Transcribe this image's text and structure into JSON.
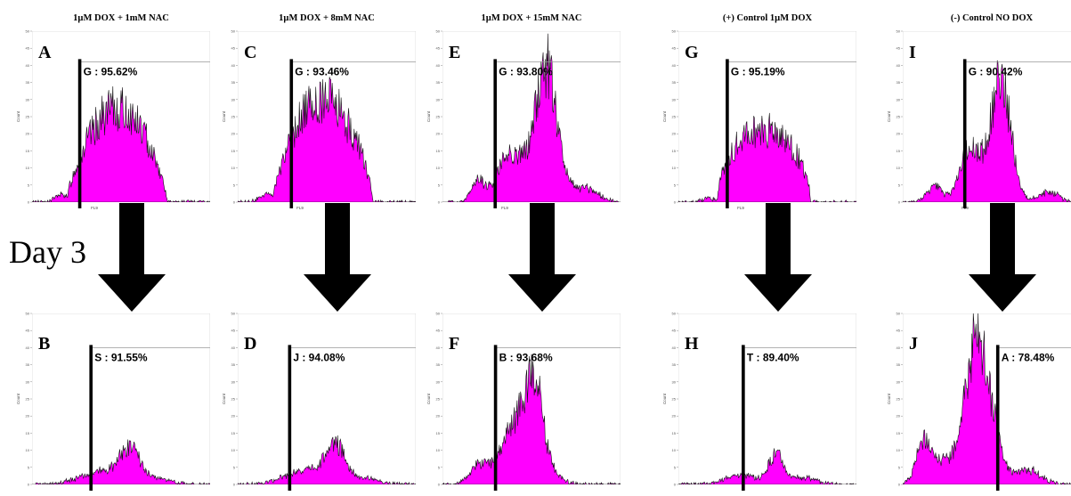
{
  "figure": {
    "row_label": "Day 3",
    "colors": {
      "fill": "#ff00ff",
      "outline": "#111111",
      "arrow": "#000000",
      "gate": "#000000"
    }
  },
  "chart_data": [
    {
      "type": "area",
      "title": "1µM DOX + 1mM NAC",
      "panel_label": "A",
      "gate_label": "G : 95.62%",
      "gate_percent": 95.62,
      "xlabel": "FL9",
      "ylabel": "Count",
      "ylim": [
        0,
        50
      ],
      "y_ticks": [
        0,
        5,
        10,
        15,
        20,
        25,
        30,
        35,
        40,
        45,
        50
      ],
      "peak_count": 27,
      "distribution": "broad"
    },
    {
      "type": "area",
      "title": "",
      "panel_label": "B",
      "gate_label": "S : 91.55%",
      "gate_percent": 91.55,
      "xlabel": "",
      "ylabel": "Count",
      "ylim": [
        0,
        50
      ],
      "y_ticks": [
        0,
        5,
        10,
        15,
        20,
        25,
        30,
        35,
        40,
        45,
        50
      ],
      "peak_count": 11,
      "distribution": "low"
    },
    {
      "type": "area",
      "title": "1µM DOX + 8mM NAC",
      "panel_label": "C",
      "gate_label": "G : 93.46%",
      "gate_percent": 93.46,
      "xlabel": "FL9",
      "ylabel": "Count",
      "ylim": [
        0,
        50
      ],
      "y_ticks": [
        0,
        5,
        10,
        15,
        20,
        25,
        30,
        35,
        40,
        45,
        50
      ],
      "peak_count": 30,
      "distribution": "broad"
    },
    {
      "type": "area",
      "title": "",
      "panel_label": "D",
      "gate_label": "J : 94.08%",
      "gate_percent": 94.08,
      "xlabel": "",
      "ylabel": "Count",
      "ylim": [
        0,
        50
      ],
      "y_ticks": [
        0,
        5,
        10,
        15,
        20,
        25,
        30,
        35,
        40,
        45,
        50
      ],
      "peak_count": 12,
      "distribution": "low"
    },
    {
      "type": "area",
      "title": "1µM DOX + 15mM NAC",
      "panel_label": "E",
      "gate_label": "G : 93.80%",
      "gate_percent": 93.8,
      "xlabel": "FL9",
      "ylabel": "Count",
      "ylim": [
        0,
        50
      ],
      "y_ticks": [
        0,
        5,
        10,
        15,
        20,
        25,
        30,
        35,
        40,
        45,
        50
      ],
      "peak_count": 40,
      "distribution": "sharp"
    },
    {
      "type": "area",
      "title": "",
      "panel_label": "F",
      "gate_label": "B : 93.68%",
      "gate_percent": 93.68,
      "xlabel": "",
      "ylabel": "Count",
      "ylim": [
        0,
        50
      ],
      "y_ticks": [
        0,
        5,
        10,
        15,
        20,
        25,
        30,
        35,
        40,
        45,
        50
      ],
      "peak_count": 33,
      "distribution": "medium"
    },
    {
      "type": "area",
      "title": "(+) Control 1µM DOX",
      "panel_label": "G",
      "gate_label": "G : 95.19%",
      "gate_percent": 95.19,
      "xlabel": "FL9",
      "ylabel": "Count",
      "ylim": [
        0,
        50
      ],
      "y_ticks": [
        0,
        5,
        10,
        15,
        20,
        25,
        30,
        35,
        40,
        45,
        50
      ],
      "peak_count": 21,
      "distribution": "plateau"
    },
    {
      "type": "area",
      "title": "",
      "panel_label": "H",
      "gate_label": "T : 89.40%",
      "gate_percent": 89.4,
      "xlabel": "",
      "ylabel": "Count",
      "ylim": [
        0,
        50
      ],
      "y_ticks": [
        0,
        5,
        10,
        15,
        20,
        25,
        30,
        35,
        40,
        45,
        50
      ],
      "peak_count": 9,
      "distribution": "very-low"
    },
    {
      "type": "area",
      "title": "(-) Control NO DOX",
      "panel_label": "I",
      "gate_label": "G : 90.42%",
      "gate_percent": 90.42,
      "xlabel": "FL9",
      "ylabel": "Count",
      "ylim": [
        0,
        50
      ],
      "y_ticks": [
        0,
        5,
        10,
        15,
        20,
        25,
        30,
        35,
        40,
        45,
        50
      ],
      "peak_count": 36,
      "distribution": "sharp-shoulder"
    },
    {
      "type": "area",
      "title": "",
      "panel_label": "J",
      "gate_label": "A : 78.48%",
      "gate_percent": 78.48,
      "xlabel": "",
      "ylabel": "Count",
      "ylim": [
        0,
        50
      ],
      "y_ticks": [
        0,
        5,
        10,
        15,
        20,
        25,
        30,
        35,
        40,
        45,
        50
      ],
      "peak_count": 42,
      "distribution": "bimodal"
    }
  ]
}
